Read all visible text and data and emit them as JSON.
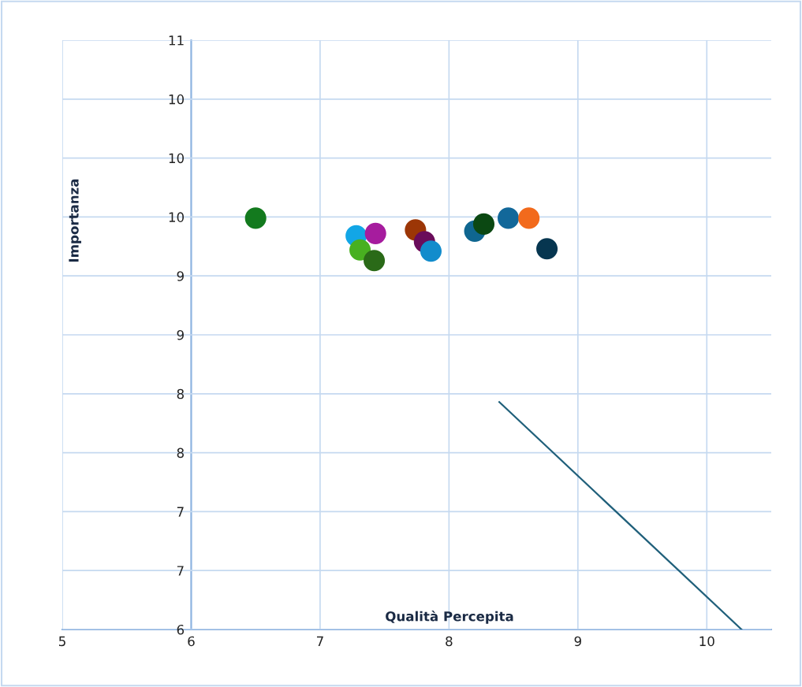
{
  "chart_data": {
    "type": "scatter",
    "xlabel": "Qualità Percepita",
    "ylabel": "Importanza",
    "xlim": [
      5,
      10.5
    ],
    "xticks": [
      5,
      6,
      7,
      8,
      9,
      10
    ],
    "ylim": [
      6,
      11
    ],
    "yticks": [
      6,
      {
        "value": 6.5,
        "label": "7"
      },
      7,
      {
        "value": 7.5,
        "label": "8"
      },
      8,
      {
        "value": 8.5,
        "label": "9"
      },
      9,
      {
        "value": 9.5,
        "label": "10"
      },
      10,
      {
        "value": 10.5,
        "label": "10"
      },
      11
    ],
    "grid": true,
    "marker": "circle",
    "series": [
      {
        "x": [
          6.5,
          7.28,
          7.31,
          7.43,
          7.42,
          7.74,
          7.81,
          7.86,
          8.2,
          8.27,
          8.46,
          8.62,
          8.76
        ],
        "values": [
          9.49,
          9.34,
          9.22,
          9.36,
          9.13,
          9.39,
          9.29,
          9.21,
          9.38,
          9.44,
          9.49,
          9.49,
          9.23
        ],
        "colors": [
          "#137a1e",
          "#12a6e6",
          "#48b020",
          "#a61c9e",
          "#2a6a18",
          "#9c3606",
          "#6a0c5a",
          "#128ccc",
          "#0f6690",
          "#0b4812",
          "#12689a",
          "#f26a1c",
          "#063650"
        ]
      },
      {
        "type": "line",
        "x": [
          8.39,
          10.27
        ],
        "values": [
          7.93,
          6.0
        ],
        "color": "#1f5f7a",
        "line_style": "solid",
        "marker": "none"
      }
    ]
  }
}
